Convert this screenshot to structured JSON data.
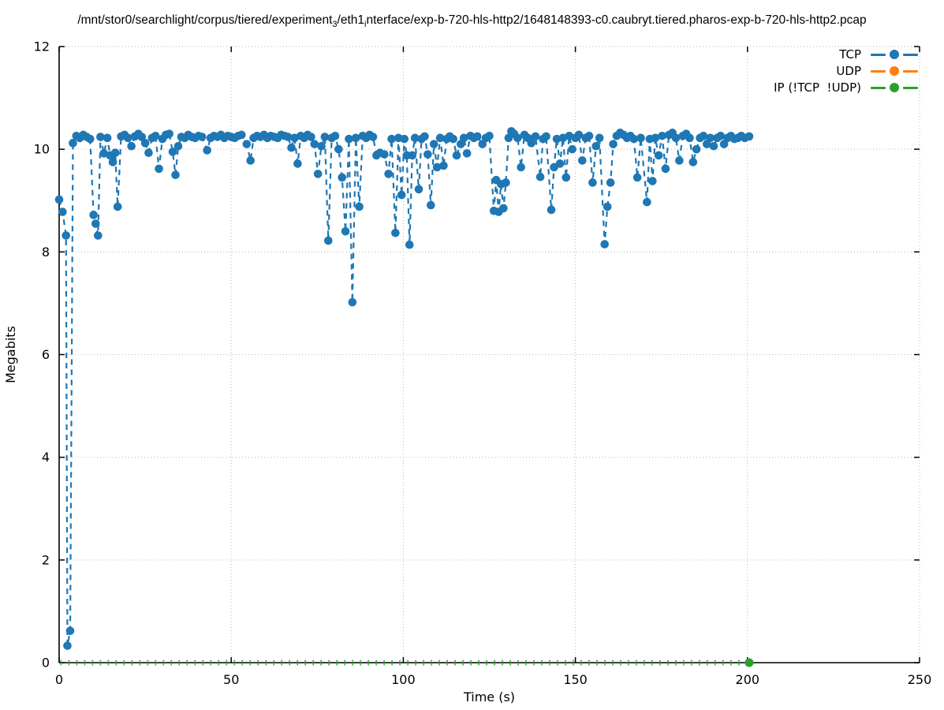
{
  "title": {
    "part1": "/mnt/stor0/searchlight/corpus/tiered/experiment",
    "sub1": "3",
    "part2": "/eth1",
    "sub2": "i",
    "part3": "nterface/exp-b-720-hls-http2/1648148393-c0.caubryt.tiered.pharos-exp-b-720-hls-http2.pcap"
  },
  "axes": {
    "x": {
      "label": "Time (s)",
      "min": 0,
      "max": 250,
      "ticks": [
        0,
        50,
        100,
        150,
        200,
        250
      ]
    },
    "y": {
      "label": "Megabits",
      "min": 0,
      "max": 12,
      "ticks": [
        0,
        2,
        4,
        6,
        8,
        10,
        12
      ]
    }
  },
  "legend": [
    {
      "label": "TCP",
      "color": "#1f77b4"
    },
    {
      "label": "UDP",
      "color": "#ff7f0e"
    },
    {
      "label": "IP (!TCP  !UDP)",
      "color": "#2ca02c"
    }
  ],
  "grid_color": "#b8b8b8",
  "chart_data": {
    "type": "line",
    "title": "/mnt/stor0/searchlight/corpus/tiered/experiment₃/eth1ᵢnterface/exp-b-720-hls-http2/1648148393-c0.caubryt.tiered.pharos-exp-b-720-hls-http2.pcap",
    "xlabel": "Time (s)",
    "ylabel": "Megabits",
    "xlim": [
      0,
      250
    ],
    "ylim": [
      0,
      12
    ],
    "grid": true,
    "legend_position": "top-right-inside",
    "series": [
      {
        "name": "TCP",
        "color": "#1f77b4",
        "style": "dashed-linespoints",
        "points": [
          [
            0,
            9.02
          ],
          [
            1,
            8.78
          ],
          [
            2,
            8.32
          ],
          [
            2.4,
            0.33
          ],
          [
            3.2,
            0.62
          ],
          [
            4,
            10.12
          ],
          [
            5,
            10.26
          ],
          [
            6,
            10.22
          ],
          [
            7,
            10.28
          ],
          [
            8,
            10.24
          ],
          [
            9,
            10.2
          ],
          [
            10,
            8.72
          ],
          [
            10.6,
            8.55
          ],
          [
            11.3,
            8.32
          ],
          [
            12,
            10.24
          ],
          [
            13,
            9.92
          ],
          [
            14,
            10.22
          ],
          [
            14.8,
            9.88
          ],
          [
            15.6,
            9.75
          ],
          [
            16.3,
            9.93
          ],
          [
            17,
            8.88
          ],
          [
            18,
            10.25
          ],
          [
            19,
            10.28
          ],
          [
            20,
            10.22
          ],
          [
            21,
            10.06
          ],
          [
            22,
            10.25
          ],
          [
            23,
            10.3
          ],
          [
            24,
            10.24
          ],
          [
            25,
            10.12
          ],
          [
            26,
            9.93
          ],
          [
            27,
            10.22
          ],
          [
            28,
            10.26
          ],
          [
            29,
            9.62
          ],
          [
            30,
            10.2
          ],
          [
            31,
            10.28
          ],
          [
            32,
            10.3
          ],
          [
            33,
            9.95
          ],
          [
            33.8,
            9.5
          ],
          [
            34.6,
            10.06
          ],
          [
            35.5,
            10.24
          ],
          [
            36.5,
            10.22
          ],
          [
            37.5,
            10.28
          ],
          [
            38.5,
            10.24
          ],
          [
            39.5,
            10.22
          ],
          [
            40.5,
            10.26
          ],
          [
            41.5,
            10.24
          ],
          [
            43,
            9.98
          ],
          [
            44,
            10.22
          ],
          [
            45,
            10.26
          ],
          [
            46,
            10.24
          ],
          [
            47,
            10.28
          ],
          [
            48,
            10.22
          ],
          [
            49,
            10.26
          ],
          [
            50,
            10.24
          ],
          [
            51,
            10.22
          ],
          [
            52,
            10.26
          ],
          [
            53,
            10.28
          ],
          [
            54.5,
            10.1
          ],
          [
            55.6,
            9.78
          ],
          [
            56.5,
            10.22
          ],
          [
            57.5,
            10.26
          ],
          [
            58.5,
            10.24
          ],
          [
            59.5,
            10.28
          ],
          [
            60.5,
            10.22
          ],
          [
            61.5,
            10.26
          ],
          [
            62.5,
            10.24
          ],
          [
            63.5,
            10.22
          ],
          [
            64.5,
            10.28
          ],
          [
            65.5,
            10.26
          ],
          [
            66.5,
            10.24
          ],
          [
            67.5,
            10.03
          ],
          [
            68.4,
            10.22
          ],
          [
            69.3,
            9.72
          ],
          [
            70.2,
            10.26
          ],
          [
            71.2,
            10.22
          ],
          [
            72.2,
            10.28
          ],
          [
            73.2,
            10.24
          ],
          [
            74.2,
            10.1
          ],
          [
            75.2,
            9.52
          ],
          [
            76.2,
            10.06
          ],
          [
            77.2,
            10.24
          ],
          [
            78.2,
            8.22
          ],
          [
            79.2,
            10.22
          ],
          [
            80.2,
            10.26
          ],
          [
            81.2,
            10.0
          ],
          [
            82.2,
            9.45
          ],
          [
            83.2,
            8.4
          ],
          [
            84.2,
            10.2
          ],
          [
            85.2,
            7.02
          ],
          [
            86.2,
            10.22
          ],
          [
            87.2,
            8.88
          ],
          [
            88.2,
            10.26
          ],
          [
            89.2,
            10.22
          ],
          [
            90.2,
            10.28
          ],
          [
            91.2,
            10.24
          ],
          [
            92.2,
            9.88
          ],
          [
            93.2,
            9.93
          ],
          [
            94.5,
            9.9
          ],
          [
            95.7,
            9.52
          ],
          [
            96.6,
            10.2
          ],
          [
            97.7,
            8.37
          ],
          [
            98.6,
            10.22
          ],
          [
            99.5,
            9.11
          ],
          [
            100.3,
            10.2
          ],
          [
            101,
            9.88
          ],
          [
            101.8,
            8.14
          ],
          [
            102.6,
            9.88
          ],
          [
            103.4,
            10.22
          ],
          [
            104.5,
            9.22
          ],
          [
            105.3,
            10.2
          ],
          [
            106.2,
            10.25
          ],
          [
            107.1,
            9.9
          ],
          [
            108,
            8.91
          ],
          [
            108.9,
            10.1
          ],
          [
            109.8,
            9.65
          ],
          [
            110.7,
            10.22
          ],
          [
            111.7,
            9.68
          ],
          [
            112.6,
            10.2
          ],
          [
            113.5,
            10.25
          ],
          [
            114.5,
            10.2
          ],
          [
            115.5,
            9.88
          ],
          [
            116.7,
            10.1
          ],
          [
            117.6,
            10.22
          ],
          [
            118.5,
            9.92
          ],
          [
            119.5,
            10.26
          ],
          [
            120.5,
            10.22
          ],
          [
            121.5,
            10.25
          ],
          [
            123,
            10.1
          ],
          [
            124,
            10.22
          ],
          [
            125,
            10.26
          ],
          [
            126.3,
            8.8
          ],
          [
            127,
            9.4
          ],
          [
            127.7,
            8.78
          ],
          [
            128.4,
            9.32
          ],
          [
            129.1,
            8.85
          ],
          [
            129.8,
            9.35
          ],
          [
            130.6,
            10.22
          ],
          [
            131.4,
            10.35
          ],
          [
            132.2,
            10.3
          ],
          [
            133.2,
            10.22
          ],
          [
            134.2,
            9.65
          ],
          [
            135.2,
            10.28
          ],
          [
            136.2,
            10.22
          ],
          [
            137.2,
            10.12
          ],
          [
            138.4,
            10.25
          ],
          [
            139.8,
            9.46
          ],
          [
            140.6,
            10.2
          ],
          [
            141.5,
            10.25
          ],
          [
            143,
            8.82
          ],
          [
            143.8,
            9.65
          ],
          [
            144.6,
            10.2
          ],
          [
            145.5,
            9.72
          ],
          [
            146.4,
            10.22
          ],
          [
            147.3,
            9.45
          ],
          [
            148.2,
            10.26
          ],
          [
            149.1,
            10.0
          ],
          [
            150,
            10.22
          ],
          [
            151,
            10.28
          ],
          [
            152,
            9.78
          ],
          [
            153,
            10.22
          ],
          [
            154,
            10.26
          ],
          [
            155,
            9.35
          ],
          [
            156,
            10.06
          ],
          [
            157,
            10.22
          ],
          [
            158.5,
            8.15
          ],
          [
            159.3,
            8.88
          ],
          [
            160.2,
            9.35
          ],
          [
            161,
            10.1
          ],
          [
            162,
            10.26
          ],
          [
            163,
            10.32
          ],
          [
            164,
            10.28
          ],
          [
            165,
            10.22
          ],
          [
            166,
            10.26
          ],
          [
            167,
            10.2
          ],
          [
            168,
            9.45
          ],
          [
            169,
            10.22
          ],
          [
            170.8,
            8.97
          ],
          [
            171.6,
            10.2
          ],
          [
            172.4,
            9.38
          ],
          [
            173.2,
            10.22
          ],
          [
            174.2,
            9.88
          ],
          [
            175.2,
            10.26
          ],
          [
            176.2,
            9.62
          ],
          [
            177.2,
            10.28
          ],
          [
            178.2,
            10.32
          ],
          [
            179.2,
            10.22
          ],
          [
            180.2,
            9.78
          ],
          [
            181.2,
            10.26
          ],
          [
            182.2,
            10.3
          ],
          [
            183.2,
            10.22
          ],
          [
            184.2,
            9.75
          ],
          [
            185.2,
            10.0
          ],
          [
            186.2,
            10.22
          ],
          [
            187.2,
            10.26
          ],
          [
            188.2,
            10.1
          ],
          [
            189.2,
            10.22
          ],
          [
            190.2,
            10.06
          ],
          [
            191.2,
            10.22
          ],
          [
            192.2,
            10.26
          ],
          [
            193.2,
            10.1
          ],
          [
            194.2,
            10.22
          ],
          [
            195.2,
            10.26
          ],
          [
            196.2,
            10.2
          ],
          [
            197.2,
            10.22
          ],
          [
            198.2,
            10.26
          ],
          [
            199.2,
            10.22
          ],
          [
            200.5,
            10.25
          ]
        ]
      },
      {
        "name": "UDP",
        "color": "#ff7f0e",
        "style": "dashed-linespoints",
        "points": []
      },
      {
        "name": "IP (!TCP  !UDP)",
        "color": "#2ca02c",
        "style": "dashed-linespoints",
        "points": [
          [
            200.5,
            0
          ]
        ],
        "baseline": {
          "y": 0,
          "from": 0.55,
          "to": 197.5,
          "tick_interval": 2.29
        }
      }
    ]
  }
}
